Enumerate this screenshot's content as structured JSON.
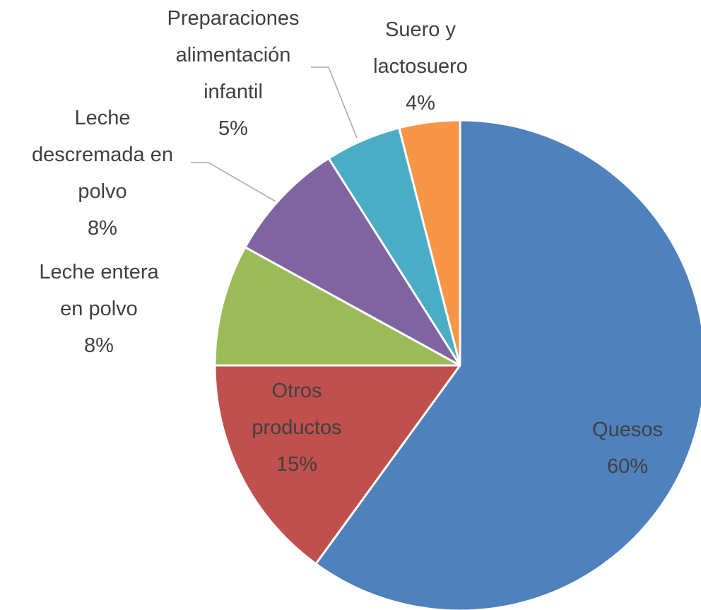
{
  "chart_data": {
    "type": "pie",
    "categories": [
      "Quesos",
      "Otros productos",
      "Leche entera en polvo",
      "Leche descremada en polvo",
      "Preparaciones alimentación infantil",
      "Suero y lactosuero"
    ],
    "values": [
      60,
      15,
      8,
      8,
      5,
      4
    ],
    "value_labels": [
      "60%",
      "15%",
      "8%",
      "8%",
      "5%",
      "4%"
    ],
    "colors": [
      "#4f81bd",
      "#c0504d",
      "#9bbb59",
      "#8064a2",
      "#4bacc6",
      "#f79646"
    ]
  }
}
